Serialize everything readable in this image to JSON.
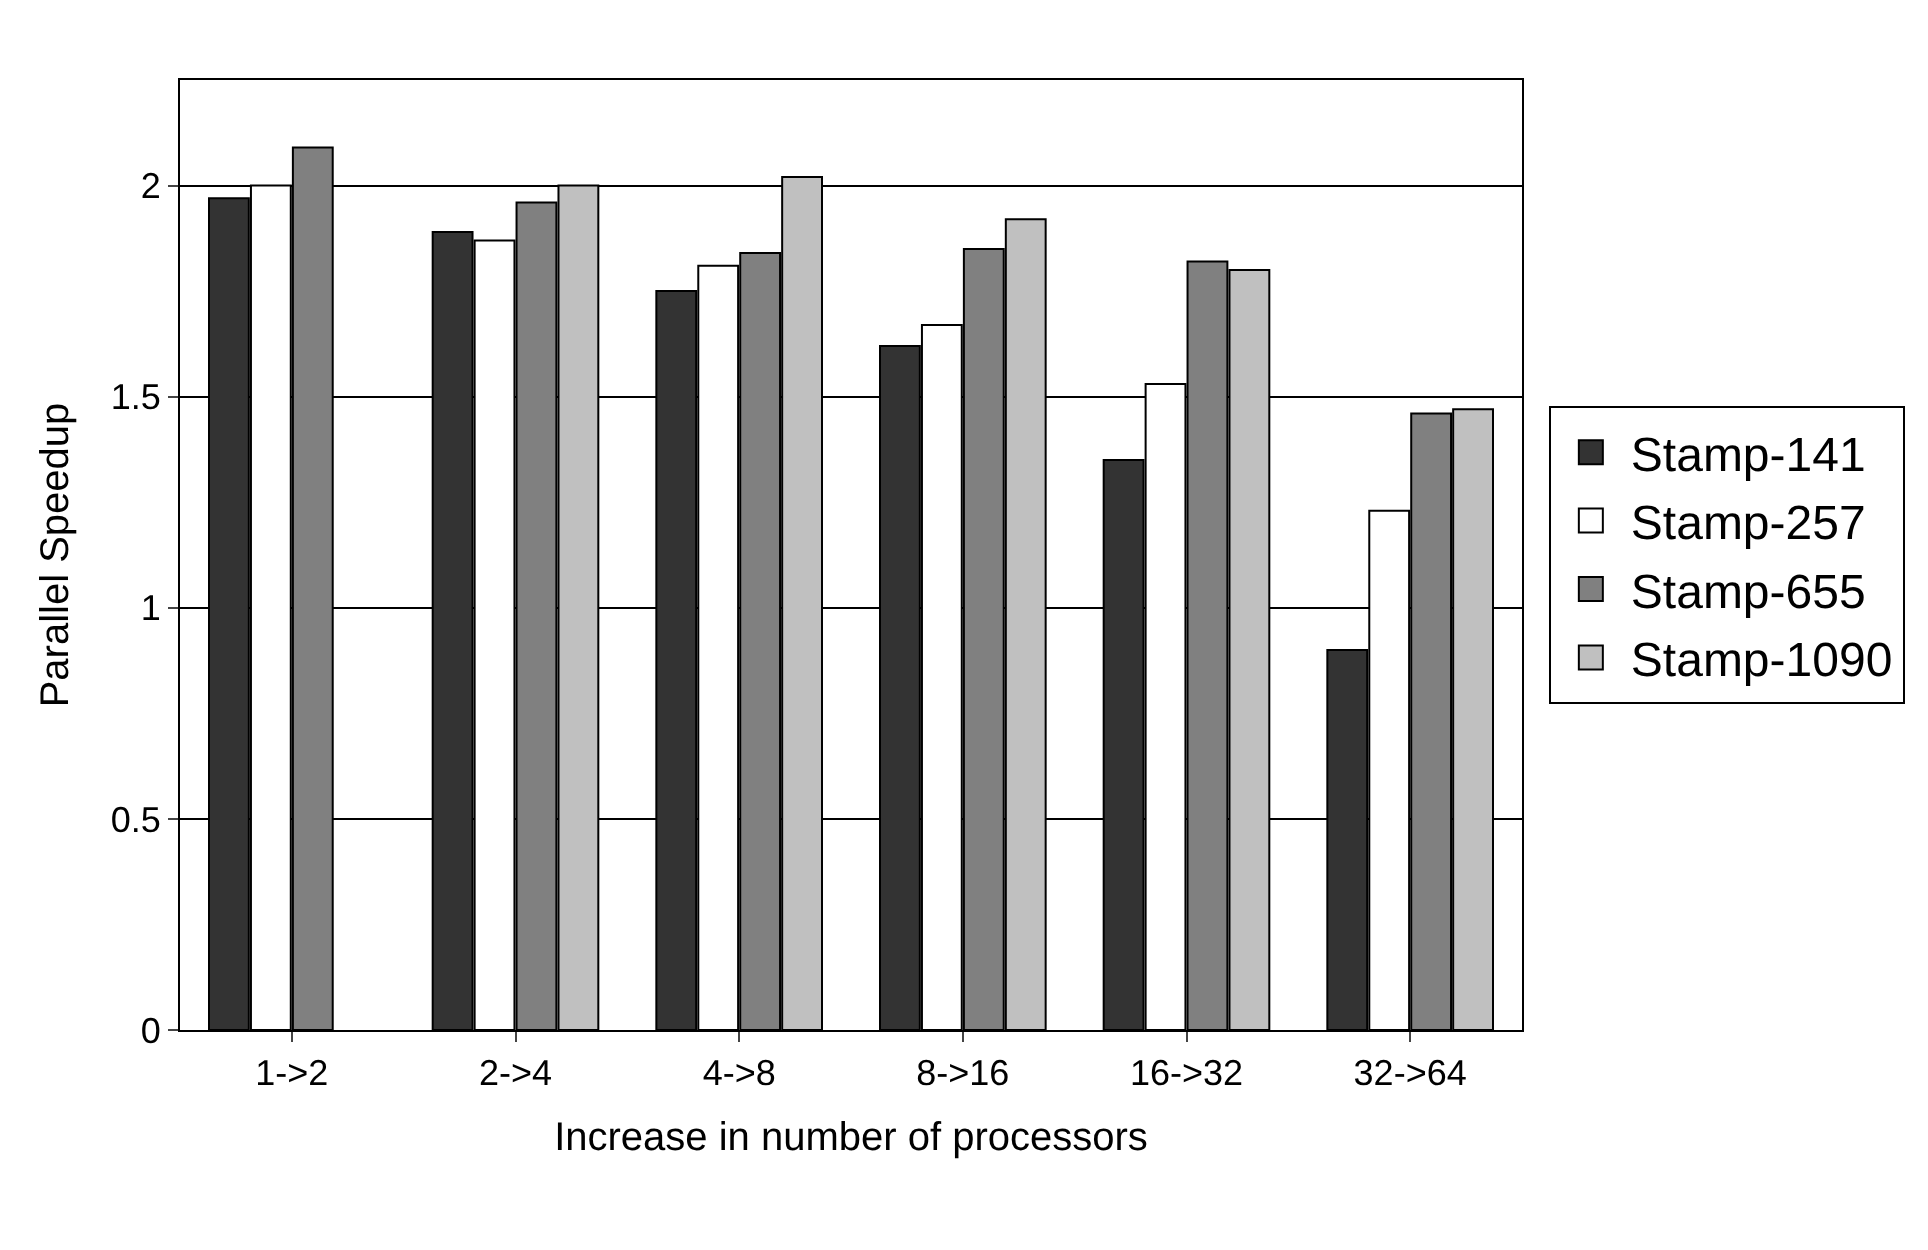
{
  "chart_data": {
    "type": "bar",
    "xlabel": "Increase in number of processors",
    "ylabel": "Parallel Speedup",
    "categories": [
      "1->2",
      "2->4",
      "4->8",
      "8->16",
      "16->32",
      "32->64"
    ],
    "series": [
      {
        "name": "Stamp-141",
        "color": "#333333",
        "values": [
          1.97,
          1.89,
          1.75,
          1.62,
          1.35,
          0.9
        ]
      },
      {
        "name": "Stamp-257",
        "color": "#ffffff",
        "values": [
          2.0,
          1.87,
          1.81,
          1.67,
          1.53,
          1.23
        ]
      },
      {
        "name": "Stamp-655",
        "color": "#808080",
        "values": [
          2.09,
          1.96,
          1.84,
          1.85,
          1.82,
          1.46
        ]
      },
      {
        "name": "Stamp-1090",
        "color": "#c0c0c0",
        "values": [
          null,
          2.0,
          2.02,
          1.92,
          1.8,
          1.47
        ]
      }
    ],
    "ylim": [
      0,
      2.25
    ],
    "yticks": [
      0,
      0.5,
      1,
      1.5,
      2
    ],
    "grid": "y",
    "legend": "right"
  }
}
